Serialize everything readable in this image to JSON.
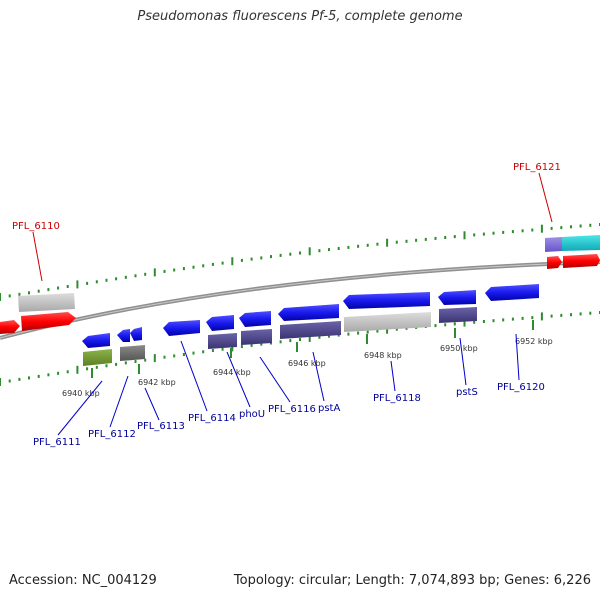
{
  "title": "Pseudomonas fluorescens Pf-5, complete genome",
  "footer": {
    "accession": "Accession: NC_004129",
    "stats": "Topology: circular; Length: 7,074,893 bp; Genes: 6,226"
  },
  "ticks": [
    "6940 kbp",
    "6942 kbp",
    "6944 kbp",
    "6946 kbp",
    "6948 kbp",
    "6950 kbp",
    "6952 kbp"
  ],
  "genes_above": [
    "PFL_6110",
    "PFL_6121"
  ],
  "genes_below": [
    "PFL_6111",
    "PFL_6112",
    "PFL_6113",
    "PFL_6114",
    "phoU",
    "PFL_6116",
    "pstA",
    "PFL_6118",
    "pstS",
    "PFL_6120"
  ],
  "colors": {
    "forward_gene": "#ff0000",
    "reverse_gene": "#0000ee",
    "label_red": "#cc0000",
    "label_blue": "#000099",
    "tick_green": "#2e8b2e",
    "backbone": "#808080"
  }
}
